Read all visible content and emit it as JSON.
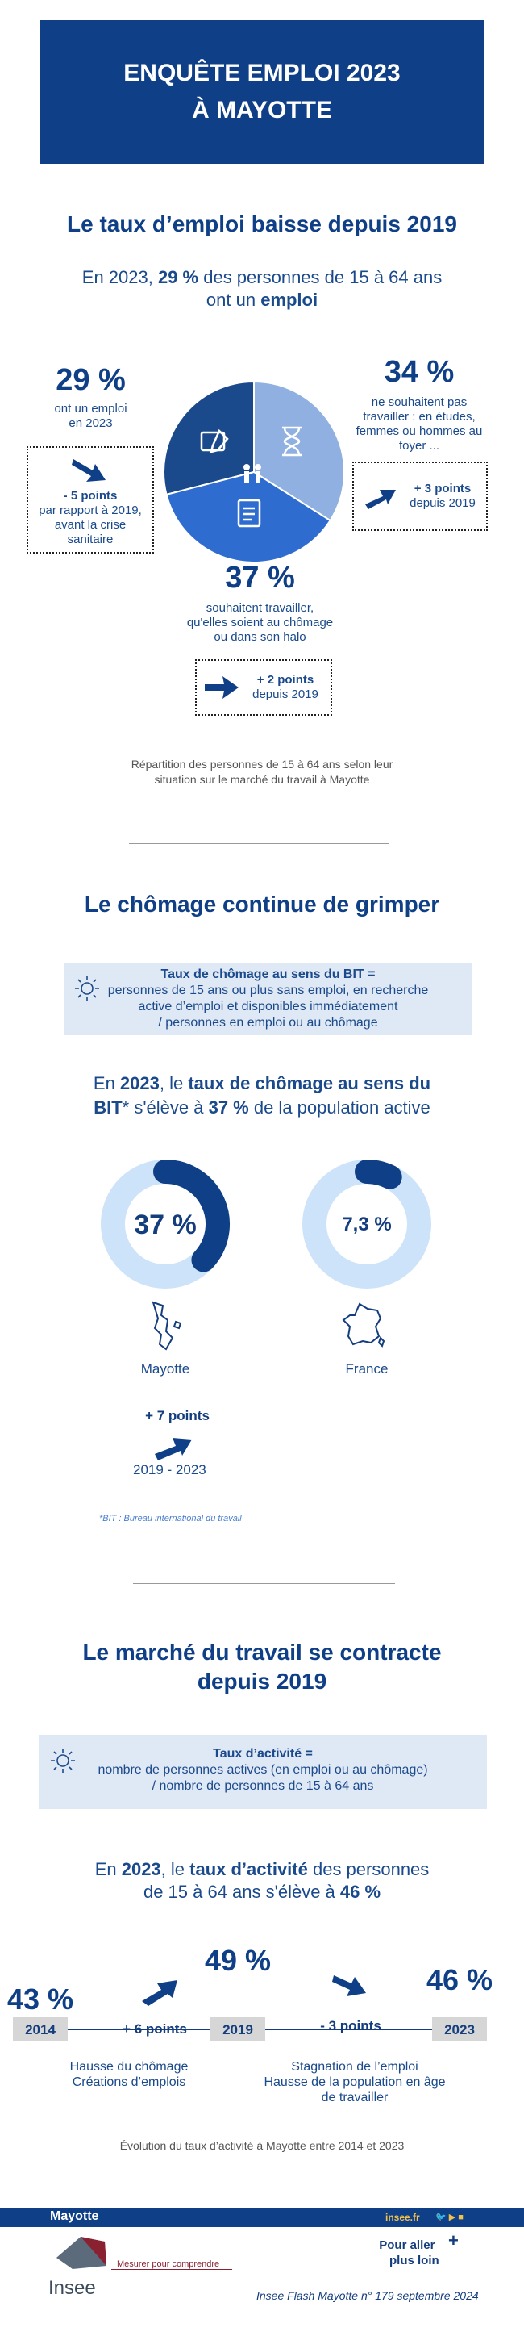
{
  "header": {
    "title_line1": "ENQUÊTE EMPLOI 2023",
    "title_line2": "À MAYOTTE"
  },
  "section1": {
    "title": "Le taux d’emploi baisse depuis 2019",
    "lead_pre": "En 2023, ",
    "lead_pct": "29 %",
    "lead_mid": " des personnes de 15 à 64 ans",
    "lead_line2_pre": "ont un ",
    "lead_line2_bold": "emploi",
    "left_value": "29 %",
    "left_label_l1": "ont un emploi",
    "left_label_l2": "en 2023",
    "left_change": "- 5 points",
    "left_change_l1": "par rapport à 2019,",
    "left_change_l2": "avant la crise",
    "left_change_l3": "sanitaire",
    "right_value": "34 %",
    "right_label_l1": "ne souhaitent pas",
    "right_label_l2": "travailler : en études,",
    "right_label_l3": "femmes ou hommes au",
    "right_label_l4": "foyer ...",
    "right_change": "+ 3 points",
    "right_change_l1": "depuis 2019",
    "bottom_value": "37 %",
    "bottom_label_l1": "souhaitent travailler,",
    "bottom_label_l2": "qu'elles soient au chômage",
    "bottom_label_l3": "ou dans son halo",
    "bottom_change": "+ 2 points",
    "bottom_change_l1": "depuis 2019",
    "caption_l1": "Répartition des personnes de 15 à 64 ans selon leur",
    "caption_l2": "situation sur le marché du travail à Mayotte",
    "colors": {
      "emploi": "#1b4a8c",
      "inactif": "#8fb0e0",
      "chomage": "#2f6ccf"
    }
  },
  "section2": {
    "title": "Le chômage continue de grimper",
    "def_title": "Taux de chômage au sens du BIT =",
    "def_l1": "personnes de 15 ans ou plus sans emploi, en recherche",
    "def_l2": "active d’emploi et disponibles immédiatement",
    "def_l3": "/ personnes en emploi ou au chômage",
    "lead_pre": "En ",
    "lead_year": "2023",
    "lead_mid": ", le ",
    "lead_bold": "taux de chômage au sens du",
    "lead_l2_bold": "BIT",
    "lead_l2_mid": "* s'élève à ",
    "lead_l2_pct": "37 %",
    "lead_l2_end": " de la population active",
    "mayotte_value": "37 %",
    "mayotte_label": "Mayotte",
    "france_value": "7,3 %",
    "france_label": "France",
    "change": "+ 7 points",
    "change_period": "2019 - 2023",
    "footnote": "*BIT : Bureau international du travail"
  },
  "section3": {
    "title_l1": "Le marché du travail se contracte",
    "title_l2": "depuis 2019",
    "def_title": "Taux d’activité =",
    "def_l1": "nombre de personnes actives (en emploi ou au chômage)",
    "def_l2": "/ nombre de personnes de 15 à 64 ans",
    "lead_pre": "En ",
    "lead_year": "2023",
    "lead_mid": ", le ",
    "lead_bold": "taux d’activité",
    "lead_end": " des personnes",
    "lead_l2_pre": "de 15 à 64 ans s'élève à ",
    "lead_l2_pct": "46 %",
    "v2014": "43 %",
    "v2019": "49 %",
    "v2023": "46 %",
    "y2014": "2014",
    "y2019": "2019",
    "y2023": "2023",
    "change1": "+ 6 points",
    "change2": "- 3 points",
    "note1_l1": "Hausse du chômage",
    "note1_l2": "Créations d’emplois",
    "note2_l1": "Stagnation de l’emploi",
    "note2_l2": "Hausse de la population en âge",
    "note2_l3": "de travailler",
    "caption": "Évolution du taux d’activité à Mayotte entre 2014 et 2023"
  },
  "chart_data": [
    {
      "type": "pie",
      "title": "Répartition des personnes de 15 à 64 ans selon leur situation sur le marché du travail à Mayotte",
      "categories": [
        "Emploi",
        "Ne souhaitent pas travailler",
        "Souhaitent travailler"
      ],
      "values": [
        29,
        34,
        37
      ]
    },
    {
      "type": "pie",
      "title": "Taux de chômage au sens du BIT",
      "categories": [
        "Mayotte",
        "France"
      ],
      "values": [
        37,
        7.3
      ]
    },
    {
      "type": "line",
      "title": "Évolution du taux d’activité à Mayotte entre 2014 et 2023",
      "x": [
        2014,
        2019,
        2023
      ],
      "values": [
        43,
        49,
        46
      ]
    }
  ],
  "footer": {
    "region": "Mayotte",
    "site": "insee.fr",
    "more_l1": "Pour aller",
    "more_l2": "plus loin",
    "more_plus": "+",
    "logo_text": "Insee",
    "tagline": "Mesurer pour comprendre",
    "reference": "Insee Flash Mayotte n° 179 septembre 2024"
  }
}
